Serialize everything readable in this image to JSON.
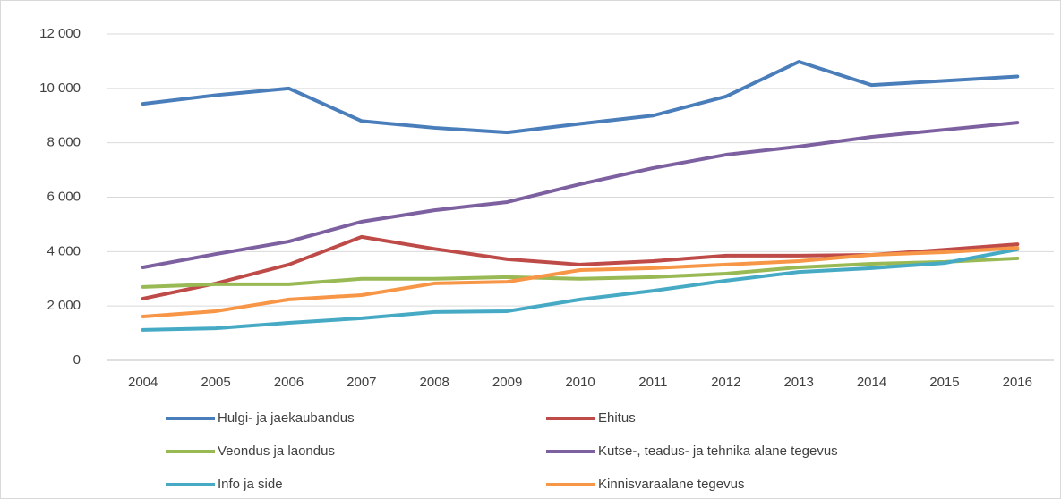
{
  "chart_data": {
    "type": "line",
    "categories": [
      "2004",
      "2005",
      "2006",
      "2007",
      "2008",
      "2009",
      "2010",
      "2011",
      "2012",
      "2013",
      "2014",
      "2015",
      "2016"
    ],
    "series": [
      {
        "name": "Hulgi- ja jaekaubandus",
        "color": "#4a7ebb",
        "values": [
          9430,
          9750,
          10000,
          8800,
          8550,
          8380,
          8700,
          9000,
          9700,
          10980,
          10120,
          10280,
          10440
        ]
      },
      {
        "name": "Ehitus",
        "color": "#be4b48",
        "values": [
          2270,
          2830,
          3520,
          4540,
          4100,
          3720,
          3520,
          3650,
          3850,
          3850,
          3880,
          4070,
          4270
        ]
      },
      {
        "name": "Veondus ja laondus",
        "color": "#98b954",
        "values": [
          2700,
          2800,
          2800,
          3000,
          3000,
          3060,
          3000,
          3060,
          3190,
          3420,
          3550,
          3620,
          3750
        ]
      },
      {
        "name": "Kutse-, teadus- ja tehnika alane tegevus",
        "color": "#7d60a0",
        "values": [
          3420,
          3910,
          4370,
          5100,
          5520,
          5820,
          6480,
          7070,
          7560,
          7860,
          8220,
          8480,
          8740
        ]
      },
      {
        "name": "Info ja side",
        "color": "#46aac5",
        "values": [
          1120,
          1180,
          1380,
          1550,
          1780,
          1810,
          2240,
          2560,
          2930,
          3250,
          3390,
          3580,
          4080
        ]
      },
      {
        "name": "Kinnisvaraalane tegevus",
        "color": "#f79646",
        "values": [
          1610,
          1810,
          2240,
          2400,
          2830,
          2890,
          3320,
          3390,
          3520,
          3650,
          3880,
          3980,
          4140
        ]
      }
    ],
    "ylim": [
      0,
      12000
    ],
    "yticks": [
      0,
      {
        "value": 2000,
        "label": "2 000"
      },
      {
        "value": 4000,
        "label": "4 000"
      },
      {
        "value": 6000,
        "label": "6 000"
      },
      {
        "value": 8000,
        "label": "8 000"
      },
      {
        "value": 10000,
        "label": "10 000"
      },
      {
        "value": 12000,
        "label": "12 000"
      }
    ],
    "grid": true,
    "legend": "bottom"
  }
}
